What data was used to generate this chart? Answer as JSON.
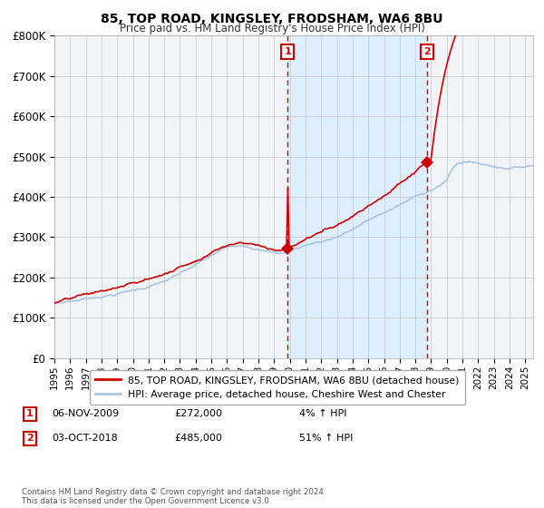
{
  "title": "85, TOP ROAD, KINGSLEY, FRODSHAM, WA6 8BU",
  "subtitle": "Price paid vs. HM Land Registry's House Price Index (HPI)",
  "ylim": [
    0,
    800000
  ],
  "yticks": [
    0,
    100000,
    200000,
    300000,
    400000,
    500000,
    600000,
    700000,
    800000
  ],
  "ytick_labels": [
    "£0",
    "£100K",
    "£200K",
    "£300K",
    "£400K",
    "£500K",
    "£600K",
    "£700K",
    "£800K"
  ],
  "x_start_year": 1995,
  "x_end_year": 2025,
  "transaction1": {
    "date_num": 2009.85,
    "price": 272000,
    "label": "1",
    "date_str": "06-NOV-2009",
    "pct": "4% ↑ HPI"
  },
  "transaction2": {
    "date_num": 2018.75,
    "price": 485000,
    "label": "2",
    "date_str": "03-OCT-2018",
    "pct": "51% ↑ HPI"
  },
  "hpi_line_color": "#aac4e0",
  "price_line_color": "#cc0000",
  "shade_color": "#ddeeff",
  "vline_color": "#cc0000",
  "grid_color": "#cccccc",
  "bg_color": "#f0f4f8",
  "legend_label1": "85, TOP ROAD, KINGSLEY, FRODSHAM, WA6 8BU (detached house)",
  "legend_label2": "HPI: Average price, detached house, Cheshire West and Chester",
  "footnote": "Contains HM Land Registry data © Crown copyright and database right 2024.\nThis data is licensed under the Open Government Licence v3.0.",
  "table_rows": [
    {
      "num": "1",
      "date": "06-NOV-2009",
      "price": "£272,000",
      "pct": "4% ↑ HPI"
    },
    {
      "num": "2",
      "date": "03-OCT-2018",
      "price": "£485,000",
      "pct": "51% ↑ HPI"
    }
  ]
}
